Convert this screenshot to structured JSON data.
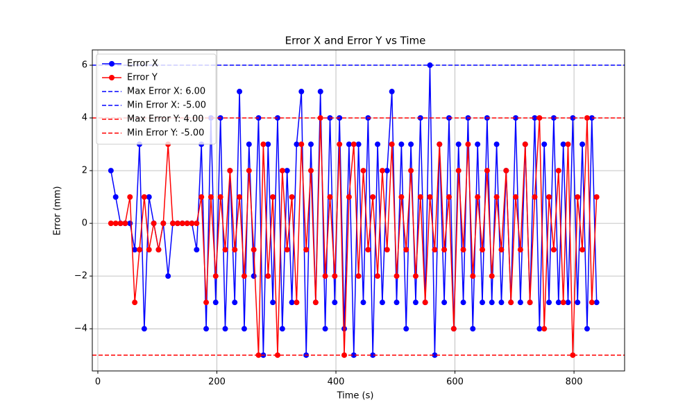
{
  "chart_data": {
    "type": "line",
    "title": "Error X and Error Y vs Time",
    "x_label": "Time (s)",
    "y_label": "Error (mm)",
    "x": [
      22,
      30,
      38,
      46,
      54,
      62,
      70,
      78,
      86,
      94,
      102,
      110,
      118,
      126,
      134,
      142,
      150,
      158,
      166,
      174,
      182,
      190,
      198,
      206,
      214,
      222,
      230,
      238,
      246,
      254,
      262,
      270,
      278,
      286,
      294,
      302,
      310,
      318,
      326,
      334,
      342,
      350,
      358,
      366,
      374,
      382,
      390,
      398,
      406,
      414,
      422,
      430,
      438,
      446,
      454,
      462,
      470,
      478,
      486,
      494,
      502,
      510,
      518,
      526,
      534,
      542,
      550,
      558,
      566,
      574,
      582,
      590,
      598,
      606,
      614,
      622,
      630,
      638,
      646,
      654,
      662,
      670,
      678,
      686,
      694,
      702,
      710,
      718,
      726,
      734,
      742,
      750,
      758,
      766,
      774,
      782,
      790,
      798,
      806,
      814,
      822,
      830,
      838
    ],
    "series": [
      {
        "name": "Error X",
        "color": "#0000ff",
        "values": [
          2,
          1,
          0,
          0,
          0,
          -1,
          3,
          -4,
          1,
          0,
          -1,
          0,
          -2,
          0,
          0,
          0,
          0,
          0,
          -1,
          3,
          -4,
          4,
          -3,
          4,
          -4,
          2,
          -3,
          5,
          -4,
          3,
          -2,
          4,
          -5,
          3,
          -3,
          4,
          -4,
          2,
          -3,
          3,
          5,
          -5,
          3,
          -3,
          5,
          -4,
          4,
          -3,
          4,
          -4,
          3,
          -5,
          3,
          -3,
          4,
          -5,
          3,
          -3,
          2,
          5,
          -3,
          3,
          -4,
          3,
          -3,
          4,
          -3,
          6,
          -5,
          3,
          -3,
          4,
          -4,
          3,
          -3,
          4,
          -4,
          3,
          -3,
          4,
          -3,
          3,
          -3,
          2,
          -3,
          4,
          -3,
          3,
          -3,
          4,
          -4,
          3,
          -3,
          4,
          -3,
          3,
          -3,
          4,
          -3,
          3,
          -4,
          4,
          -3
        ]
      },
      {
        "name": "Error Y",
        "color": "#ff0000",
        "values": [
          0,
          0,
          0,
          0,
          1,
          -3,
          -1,
          1,
          -1,
          0,
          -1,
          0,
          3,
          0,
          0,
          0,
          0,
          0,
          0,
          1,
          -3,
          1,
          -2,
          1,
          -1,
          2,
          -1,
          1,
          -2,
          2,
          -1,
          -5,
          3,
          -2,
          1,
          -5,
          2,
          -1,
          1,
          -3,
          3,
          -1,
          2,
          -3,
          4,
          -2,
          1,
          -2,
          3,
          -5,
          1,
          3,
          -2,
          2,
          -1,
          1,
          -2,
          2,
          -1,
          3,
          -2,
          1,
          -1,
          2,
          -2,
          1,
          -3,
          1,
          -1,
          3,
          -1,
          1,
          -4,
          2,
          -1,
          3,
          -2,
          1,
          -1,
          2,
          -2,
          1,
          -1,
          2,
          -3,
          1,
          -1,
          3,
          -3,
          1,
          4,
          -4,
          1,
          -1,
          2,
          -3,
          3,
          -5,
          1,
          -1,
          4,
          -3,
          1
        ]
      }
    ],
    "hlines": [
      {
        "name": "Max Error X: 6.00",
        "value": 6,
        "color": "#0000ff"
      },
      {
        "name": "Min Error X: -5.00",
        "value": -5,
        "color": "#0000ff"
      },
      {
        "name": "Max Error Y: 4.00",
        "value": 4,
        "color": "#ff0000"
      },
      {
        "name": "Min Error Y: -5.00",
        "value": -5,
        "color": "#ff0000"
      }
    ],
    "xlim": [
      -9.3,
      885
    ],
    "ylim": [
      -5.6,
      6.58
    ],
    "xticks": [
      0,
      200,
      400,
      600,
      800
    ],
    "yticks": [
      {
        "value": -4,
        "label": "−4"
      },
      {
        "value": -2,
        "label": "−2"
      },
      0,
      2,
      4,
      6
    ],
    "grid": true,
    "legend": "upper-left"
  }
}
